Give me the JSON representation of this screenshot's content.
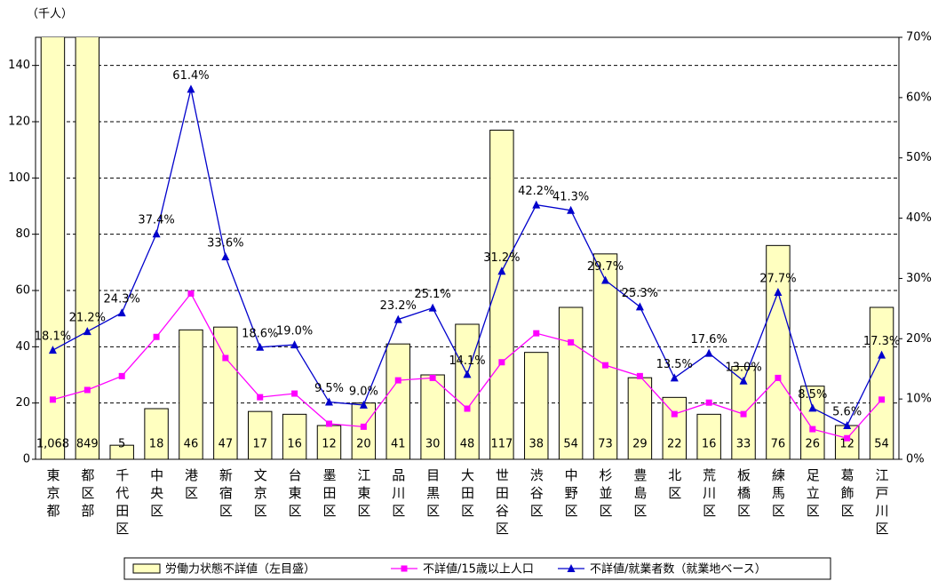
{
  "chart_data": {
    "type": "bar_line",
    "unit_label": "（千人）",
    "categories": [
      "東京都",
      "都区部",
      "千代田区",
      "中央区",
      "港区",
      "新宿区",
      "文京区",
      "台東区",
      "墨田区",
      "江東区",
      "品川区",
      "目黒区",
      "大田区",
      "世田谷区",
      "渋谷区",
      "中野区",
      "杉並区",
      "豊島区",
      "北区",
      "荒川区",
      "板橋区",
      "練馬区",
      "足立区",
      "葛飾区",
      "江戸川区"
    ],
    "ylim": [
      0,
      150
    ],
    "yticks": [
      0,
      20,
      40,
      60,
      80,
      100,
      120,
      140
    ],
    "y2lim": [
      0,
      70
    ],
    "y2ticks": [
      {
        "value": 0,
        "label": "0%"
      },
      {
        "value": 10,
        "label": "10%"
      },
      {
        "value": 20,
        "label": "20%"
      },
      {
        "value": 30,
        "label": "30%"
      },
      {
        "value": 40,
        "label": "40%"
      },
      {
        "value": 50,
        "label": "50%"
      },
      {
        "value": 60,
        "label": "60%"
      },
      {
        "value": 70,
        "label": "70%"
      }
    ],
    "grid": true,
    "series": [
      {
        "name": "労働力状態不詳値（左目盛）",
        "kind": "bar",
        "color": "#ffffc0",
        "values": [
          1068,
          849,
          5,
          18,
          46,
          47,
          17,
          16,
          12,
          20,
          41,
          30,
          48,
          117,
          38,
          54,
          73,
          29,
          22,
          16,
          33,
          76,
          26,
          12,
          54
        ],
        "value_labels": [
          "1,068",
          "849",
          "5",
          "18",
          "46",
          "47",
          "17",
          "16",
          "12",
          "20",
          "41",
          "30",
          "48",
          "117",
          "38",
          "54",
          "73",
          "29",
          "22",
          "16",
          "33",
          "76",
          "26",
          "12",
          "54"
        ]
      },
      {
        "name": "不詳値/15歳以上人口",
        "kind": "line",
        "axis": "y2",
        "color": "#ff00ff",
        "marker": "square",
        "values": [
          9.9,
          11.5,
          13.8,
          20.3,
          27.5,
          16.8,
          10.3,
          10.9,
          5.9,
          5.4,
          13.1,
          13.5,
          8.4,
          16.1,
          20.9,
          19.4,
          15.6,
          13.8,
          7.5,
          9.4,
          7.5,
          13.5,
          5.0,
          3.5,
          9.9
        ]
      },
      {
        "name": "不詳値/就業者数（就業地ベース）",
        "kind": "line",
        "axis": "y2",
        "color": "#0000cc",
        "marker": "triangle",
        "values": [
          18.1,
          21.2,
          24.3,
          37.4,
          61.4,
          33.6,
          18.6,
          19.0,
          9.5,
          9.0,
          23.2,
          25.1,
          14.1,
          31.2,
          42.2,
          41.3,
          29.7,
          25.3,
          13.5,
          17.6,
          13.0,
          27.7,
          8.5,
          5.6,
          17.3
        ],
        "value_labels": [
          "18.1%",
          "21.2%",
          "24.3%",
          "37.4%",
          "61.4%",
          "33.6%",
          "18.6%",
          "19.0%",
          "9.5%",
          "9.0%",
          "23.2%",
          "25.1%",
          "14.1%",
          "31.2%",
          "42.2%",
          "41.3%",
          "29.7%",
          "25.3%",
          "13.5%",
          "17.6%",
          "13.0%",
          "27.7%",
          "8.5%",
          "5.6%",
          "17.3%"
        ]
      }
    ]
  }
}
